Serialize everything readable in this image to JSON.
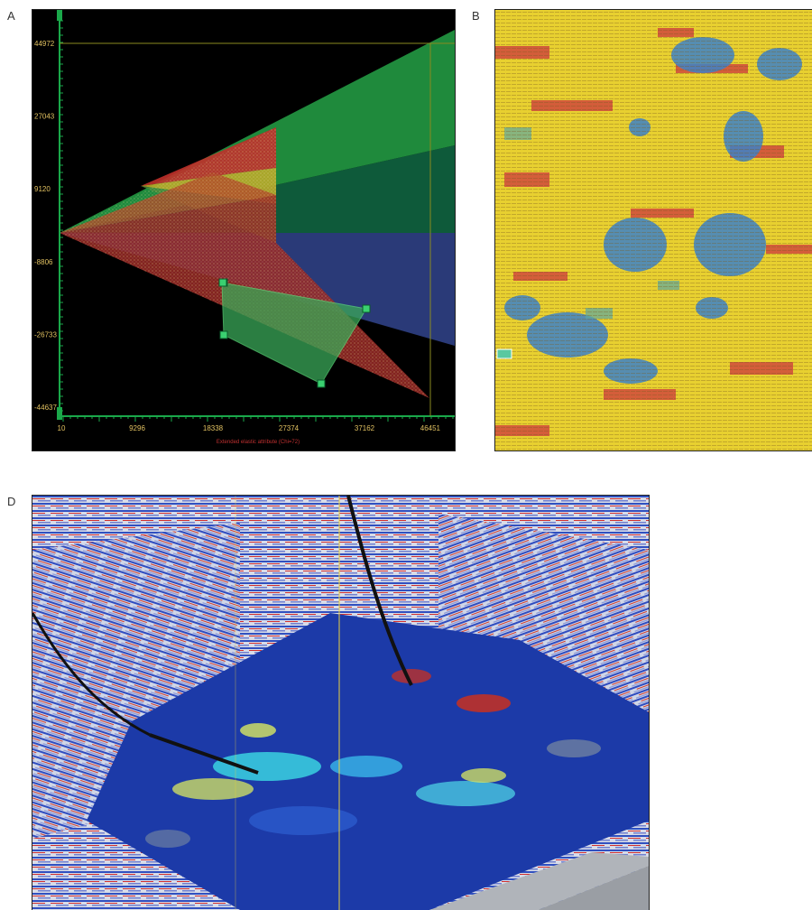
{
  "panels": {
    "a": {
      "letter": "A"
    },
    "b": {
      "letter": "B"
    },
    "d": {
      "letter": "D"
    }
  },
  "crossplot": {
    "y_ticks": [
      "44972",
      "27043",
      "9120",
      "-8806",
      "-26733",
      "-44637"
    ],
    "x_ticks": [
      "10",
      "9296",
      "18338",
      "27374",
      "37162",
      "46451"
    ],
    "x_axis_title": "Extended elastic attribute (Chi=72)",
    "polygon_handles": 5
  },
  "colors": {
    "red": "#c0302a",
    "yellow": "#d8c830",
    "green": "#1f8a3c",
    "dark_green": "#0e5a3a",
    "navy": "#2a3a78",
    "axis_green": "#1aa84a",
    "grid_olive": "#8a8a20",
    "map_yellow": "#e8d030",
    "map_red": "#d04a3c",
    "map_blue": "#3d82c8"
  }
}
